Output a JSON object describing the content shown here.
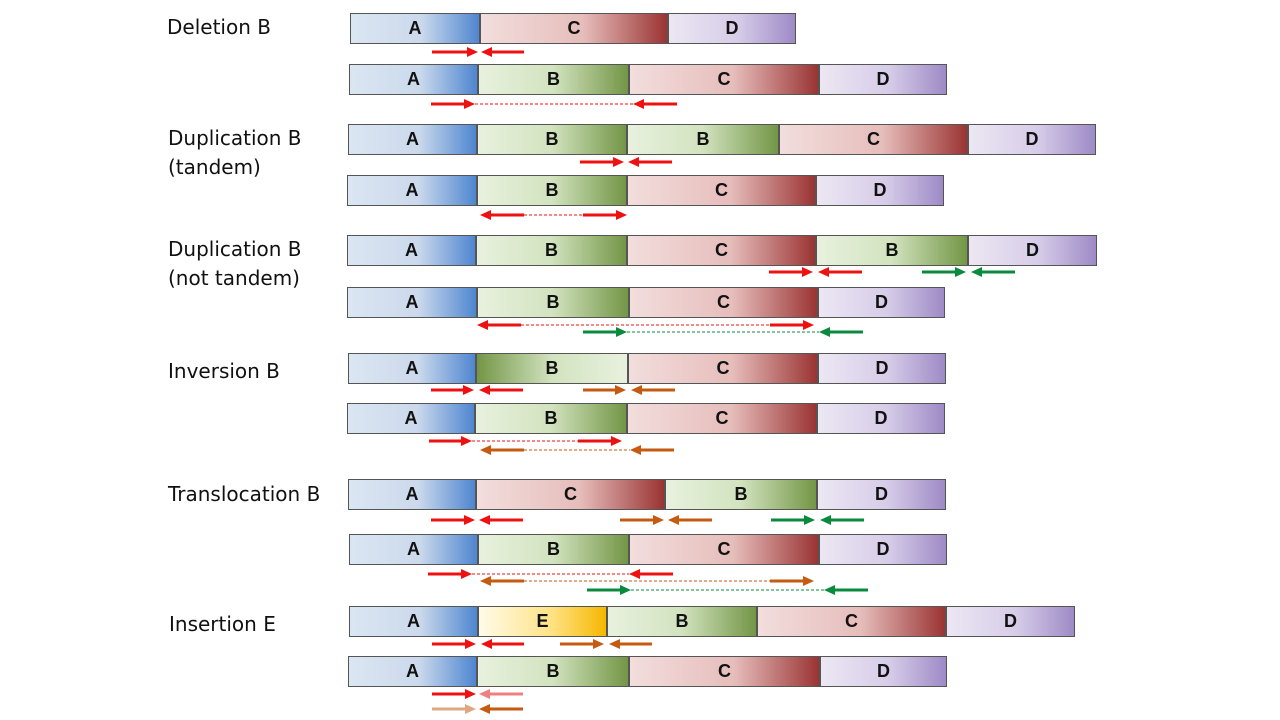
{
  "labels": {
    "deletion": "Deletion B",
    "dup_tandem_1": "Duplication B",
    "dup_tandem_2": "(tandem)",
    "dup_not_1": "Duplication B",
    "dup_not_2": "(not tandem)",
    "inversion": "Inversion B",
    "translocation": "Translocation B",
    "insertion": "Insertion E"
  },
  "segments": {
    "A": "A",
    "B": "B",
    "C": "C",
    "D": "D",
    "E": "E"
  },
  "colors": {
    "red": "#ee1111",
    "orange": "#c55a11",
    "green": "#0a8a3c",
    "light_red": "#f07f7f",
    "light_orange": "#e0a882"
  }
}
